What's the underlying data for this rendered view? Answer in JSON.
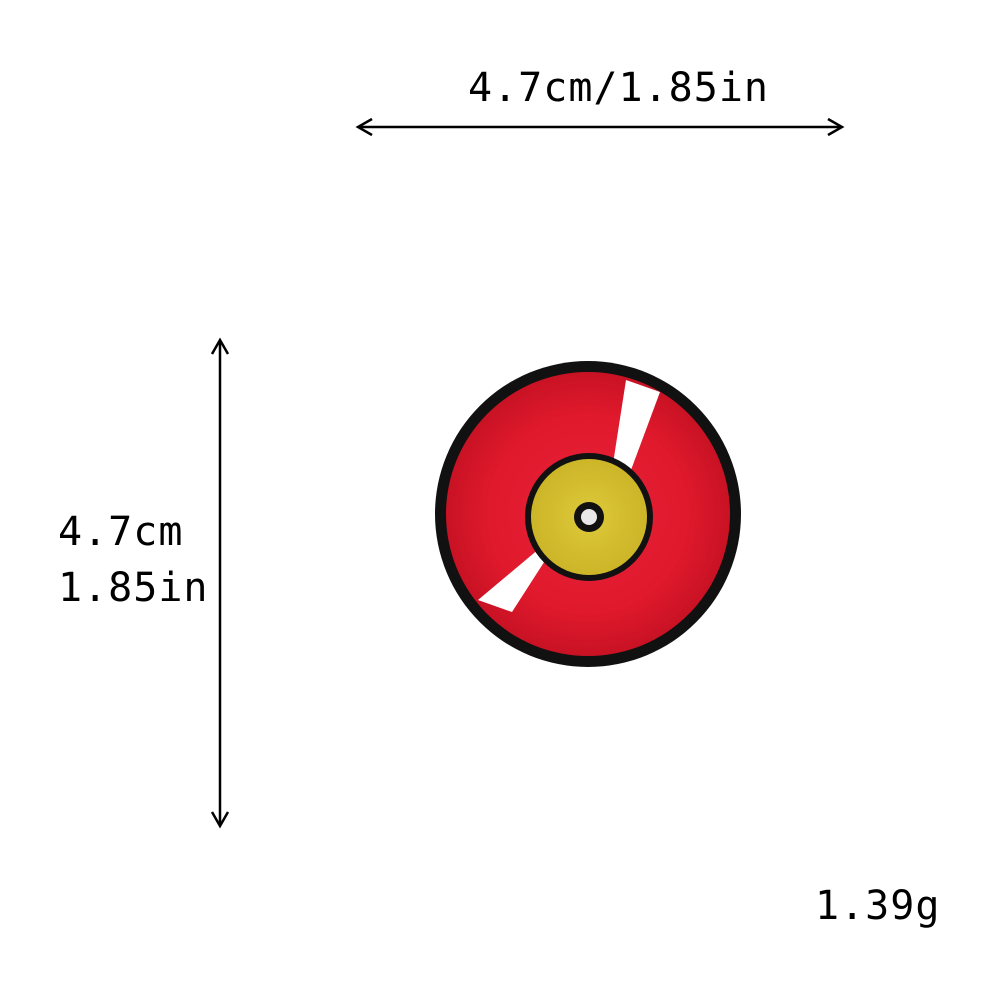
{
  "dimensions": {
    "width_label": "4.7cm/1.85in",
    "height_label_cm": "4.7cm",
    "height_label_in": "1.85in"
  },
  "weight": {
    "label": "1.39g"
  },
  "product": {
    "icon": "vinyl-record-patch-icon",
    "colors": {
      "border": "#111111",
      "disc": "#e0192c",
      "label_center": "#d7c230",
      "highlight": "#ffffff",
      "hole": "#e8e8e8"
    }
  }
}
